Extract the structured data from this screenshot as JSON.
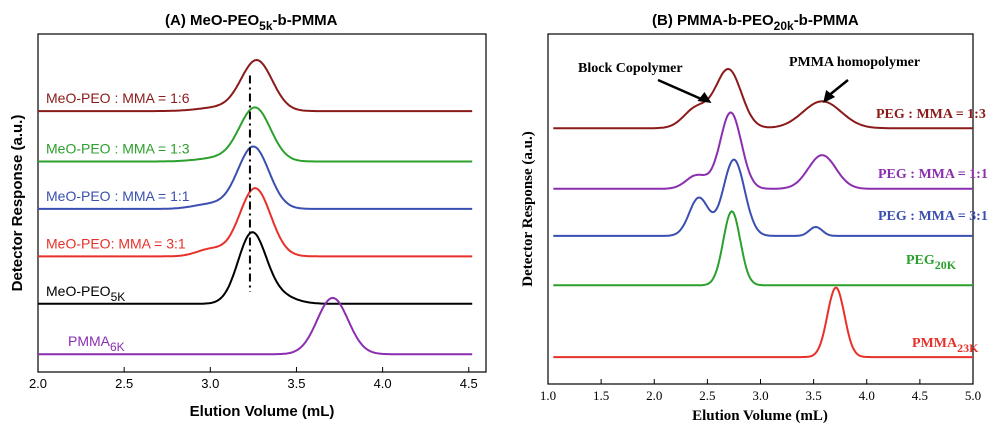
{
  "chart_data": [
    {
      "type": "line",
      "title": "(A) MeO-PEO5k-b-PMMA",
      "title_parts": {
        "main": "(A) MeO-PEO",
        "sub": "5k",
        "tail": "-b-PMMA"
      },
      "xlabel": "Elution Volume (mL)",
      "ylabel": "Detector Response (a.u.)",
      "xlim": [
        2.0,
        4.6
      ],
      "xticks": [
        "2.0",
        "2.5",
        "3.0",
        "3.5",
        "4.0",
        "4.5"
      ],
      "y_ticks_labeled": false,
      "grid": false,
      "legend": "labels placed beside each curve",
      "annotation": "vertical dashed line near 3.23 mL",
      "dashed_line_x": 3.23,
      "series": [
        {
          "name": "MeO-PEO : MMA = 1:6",
          "label_parts": [
            "MeO-PEO : MMA = 1:6",
            "",
            ""
          ],
          "color": "#8b1a1a",
          "baseline": 4.1,
          "peak": 3.27,
          "height": 0.85,
          "width": 0.09,
          "shoulder": [
            3.05,
            0.06,
            0.12
          ]
        },
        {
          "name": "MeO-PEO : MMA = 1:3",
          "label_parts": [
            "MeO-PEO : MMA = 1:3",
            "",
            ""
          ],
          "color": "#2ca02c",
          "baseline": 3.25,
          "peak": 3.26,
          "height": 0.9,
          "width": 0.09,
          "shoulder": [
            3.05,
            0.06,
            0.12
          ]
        },
        {
          "name": "MeO-PEO : MMA = 1:1",
          "label_parts": [
            "MeO-PEO : MMA = 1:1",
            "",
            ""
          ],
          "color": "#3a4fb0",
          "baseline": 2.45,
          "peak": 3.25,
          "height": 1.05,
          "width": 0.09,
          "shoulder": [
            3.0,
            0.08,
            0.1
          ]
        },
        {
          "name": "MeO-PEO: MMA = 3:1",
          "label_parts": [
            "MeO-PEO: MMA = 3:1",
            "",
            ""
          ],
          "color": "#e8302a",
          "baseline": 1.65,
          "peak": 3.26,
          "height": 1.15,
          "width": 0.09,
          "shoulder": [
            3.0,
            0.12,
            0.08
          ]
        },
        {
          "name": "MeO-PEO5K",
          "label_parts": [
            "MeO-PEO",
            "5K",
            ""
          ],
          "color": "#000000",
          "baseline": 0.85,
          "peak": 3.24,
          "height": 1.15,
          "width": 0.08,
          "shoulder": [
            3.38,
            0.15,
            0.1
          ]
        },
        {
          "name": "PMMA6K",
          "label_parts": [
            "PMMA",
            "6K",
            ""
          ],
          "color": "#8b2fb0",
          "baseline": 0.0,
          "peak": 3.71,
          "height": 0.95,
          "width": 0.09,
          "shoulder": [
            3.6,
            0.0,
            0.1
          ]
        }
      ]
    },
    {
      "type": "line",
      "title": "(B) PMMA-b-PEO20k-b-PMMA",
      "title_parts": {
        "main": "(B) PMMA-b-PEO",
        "sub": "20k",
        "tail": "-b-PMMA"
      },
      "xlabel": "Elution Volume (mL)",
      "ylabel": "Detector Response (a.u.)",
      "xlim": [
        1.0,
        5.0
      ],
      "xticks": [
        "1.0",
        "1.5",
        "2.0",
        "2.5",
        "3.0",
        "3.5",
        "4.0",
        "4.5",
        "5.0"
      ],
      "y_ticks_labeled": false,
      "grid": false,
      "legend": "labels placed beside each curve",
      "annotations": [
        {
          "text": "Block Copolymer",
          "target_x": 2.52
        },
        {
          "text": "PMMA homopolymer",
          "target_x": 3.58
        }
      ],
      "series": [
        {
          "name": "PEG : MMA = 1:3",
          "label_parts": [
            "PEG : MMA = 1:3",
            "",
            ""
          ],
          "color": "#8b1a1a",
          "baseline": 5.1,
          "peaks": [
            [
              2.7,
              1.3,
              0.12
            ],
            [
              2.4,
              0.45,
              0.12
            ],
            [
              3.58,
              0.6,
              0.18
            ]
          ]
        },
        {
          "name": "PEG : MMA = 1:1",
          "label_parts": [
            "PEG : MMA = 1:1",
            "",
            ""
          ],
          "color": "#8b2fb0",
          "baseline": 3.75,
          "peaks": [
            [
              2.72,
              1.7,
              0.1
            ],
            [
              2.4,
              0.3,
              0.1
            ],
            [
              3.58,
              0.75,
              0.13
            ]
          ]
        },
        {
          "name": "PEG : MMA = 3:1",
          "label_parts": [
            "PEG : MMA = 3:1",
            "",
            ""
          ],
          "color": "#3a4fb0",
          "baseline": 2.7,
          "peaks": [
            [
              2.75,
              1.7,
              0.1
            ],
            [
              2.42,
              0.85,
              0.09
            ],
            [
              3.52,
              0.2,
              0.06
            ]
          ]
        },
        {
          "name": "PEG20K",
          "label_parts": [
            "PEG",
            "20K",
            ""
          ],
          "color": "#2ca02c",
          "baseline": 1.6,
          "peaks": [
            [
              2.73,
              1.65,
              0.08
            ]
          ]
        },
        {
          "name": "PMMA23K",
          "label_parts": [
            "PMMA",
            "23K",
            ""
          ],
          "color": "#e8302a",
          "baseline": 0.0,
          "peaks": [
            [
              3.71,
              1.55,
              0.08
            ]
          ]
        }
      ]
    }
  ]
}
